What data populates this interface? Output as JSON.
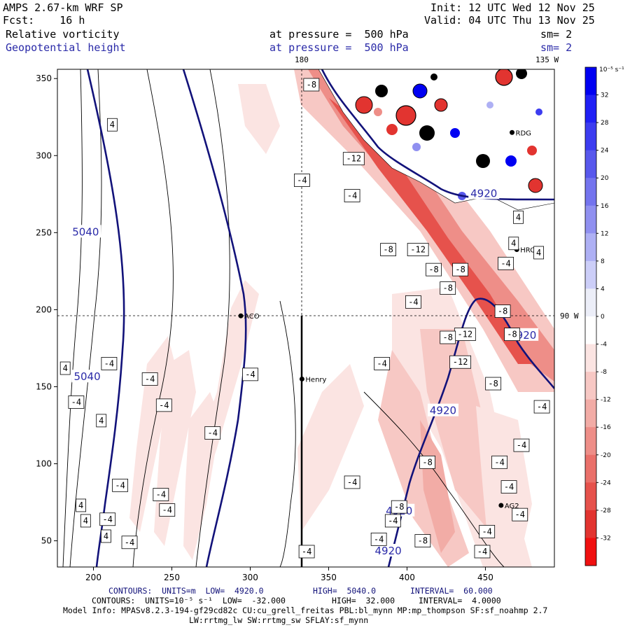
{
  "header": {
    "model": "AMPS 2.67-km WRF SP",
    "forecast": "Fcst:    16 h",
    "init": "Init: 12 UTC Wed 12 Nov 25",
    "valid": "Valid: 04 UTC Thu 13 Nov 25",
    "field1_name": "Relative vorticity",
    "field1_level": "at pressure =  500 hPa",
    "field1_smooth": "sm= 2",
    "field2_name": "Geopotential height",
    "field2_level": "at pressure =  500 hPa",
    "field2_smooth": "sm= 2",
    "top_lon_label": "180",
    "top_right_lon_label": "135 W",
    "right_lon_label": "90 W"
  },
  "map": {
    "x_ticks": [
      "200",
      "250",
      "300",
      "350",
      "400",
      "450"
    ],
    "x_tick_values": [
      200,
      250,
      300,
      350,
      400,
      450
    ],
    "y_ticks": [
      "350",
      "300",
      "250",
      "200",
      "150",
      "100",
      "50"
    ],
    "y_tick_values": [
      350,
      300,
      250,
      200,
      150,
      100,
      50
    ],
    "x_range": [
      177,
      494
    ],
    "y_range": [
      33,
      356
    ],
    "stations": [
      {
        "name": "RDG",
        "x": 467,
        "y": 315
      },
      {
        "name": "HRC",
        "x": 470,
        "y": 239
      },
      {
        "name": "ACO",
        "x": 294,
        "y": 196
      },
      {
        "name": "Henry",
        "x": 333,
        "y": 155
      },
      {
        "name": "AG2",
        "x": 460,
        "y": 73
      }
    ],
    "height_labels": [
      {
        "text": "5040",
        "x": 195,
        "y": 250
      },
      {
        "text": "5040",
        "x": 196,
        "y": 156
      },
      {
        "text": "4920",
        "x": 449,
        "y": 275
      },
      {
        "text": "4920",
        "x": 474,
        "y": 183
      },
      {
        "text": "4920",
        "x": 423,
        "y": 134
      },
      {
        "text": "4920",
        "x": 395,
        "y": 69
      },
      {
        "text": "4920",
        "x": 388,
        "y": 43
      }
    ],
    "vort_labels": [
      {
        "text": "-8",
        "x": 339,
        "y": 346
      },
      {
        "text": "-12",
        "x": 366,
        "y": 298
      },
      {
        "text": "-4",
        "x": 333,
        "y": 284
      },
      {
        "text": "-4",
        "x": 365,
        "y": 274
      },
      {
        "text": "-8",
        "x": 388,
        "y": 239
      },
      {
        "text": "-12",
        "x": 407,
        "y": 239
      },
      {
        "text": "-8",
        "x": 417,
        "y": 226
      },
      {
        "text": "-8",
        "x": 434,
        "y": 226
      },
      {
        "text": "-8",
        "x": 426,
        "y": 214
      },
      {
        "text": "-4",
        "x": 404,
        "y": 205
      },
      {
        "text": "-8",
        "x": 461,
        "y": 199
      },
      {
        "text": "-12",
        "x": 437,
        "y": 184
      },
      {
        "text": "-8",
        "x": 467,
        "y": 184
      },
      {
        "text": "-8",
        "x": 426,
        "y": 182
      },
      {
        "text": "-12",
        "x": 434,
        "y": 166
      },
      {
        "text": "-8",
        "x": 455,
        "y": 152
      },
      {
        "text": "-4",
        "x": 384,
        "y": 165
      },
      {
        "text": "-4",
        "x": 300,
        "y": 158
      },
      {
        "text": "-4",
        "x": 236,
        "y": 155
      },
      {
        "text": "-4",
        "x": 245,
        "y": 138
      },
      {
        "text": "-4",
        "x": 210,
        "y": 165
      },
      {
        "text": "-4",
        "x": 189,
        "y": 140
      },
      {
        "text": "-4",
        "x": 276,
        "y": 120
      },
      {
        "text": "-4",
        "x": 217,
        "y": 86
      },
      {
        "text": "-4",
        "x": 243,
        "y": 80
      },
      {
        "text": "-4",
        "x": 247,
        "y": 70
      },
      {
        "text": "-4",
        "x": 209,
        "y": 64
      },
      {
        "text": "-4",
        "x": 223,
        "y": 49
      },
      {
        "text": "-4",
        "x": 336,
        "y": 43
      },
      {
        "text": "-4",
        "x": 365,
        "y": 88
      },
      {
        "text": "-8",
        "x": 413,
        "y": 101
      },
      {
        "text": "-8",
        "x": 395,
        "y": 72
      },
      {
        "text": "-4",
        "x": 391,
        "y": 63
      },
      {
        "text": "-8",
        "x": 410,
        "y": 50
      },
      {
        "text": "-4",
        "x": 382,
        "y": 51
      },
      {
        "text": "-4",
        "x": 459,
        "y": 101
      },
      {
        "text": "-4",
        "x": 465,
        "y": 85
      },
      {
        "text": "-4",
        "x": 472,
        "y": 67
      },
      {
        "text": "-4",
        "x": 451,
        "y": 56
      },
      {
        "text": "-4",
        "x": 448,
        "y": 43
      },
      {
        "text": "-4",
        "x": 473,
        "y": 112
      },
      {
        "text": "-4",
        "x": 486,
        "y": 137
      },
      {
        "text": "-4",
        "x": 463,
        "y": 230
      },
      {
        "text": "4",
        "x": 212,
        "y": 320
      },
      {
        "text": "4",
        "x": 182,
        "y": 162
      },
      {
        "text": "4",
        "x": 205,
        "y": 128
      },
      {
        "text": "4",
        "x": 192,
        "y": 73
      },
      {
        "text": "4",
        "x": 195,
        "y": 63
      },
      {
        "text": "4",
        "x": 208,
        "y": 53
      },
      {
        "text": "4",
        "x": 471,
        "y": 260
      },
      {
        "text": "4",
        "x": 468,
        "y": 243
      },
      {
        "text": "4",
        "x": 484,
        "y": 237
      }
    ]
  },
  "colorbar": {
    "unit_label": "10⁻⁵ s⁻¹",
    "ticks": [
      "32",
      "28",
      "24",
      "20",
      "16",
      "12",
      "8",
      "4",
      "0",
      "-4",
      "-8",
      "-12",
      "-16",
      "-20",
      "-24",
      "-28",
      "-32"
    ],
    "colors": [
      "#0000f2",
      "#2020f5",
      "#3c3cf0",
      "#5858ec",
      "#7474ee",
      "#9090f0",
      "#aeb0f4",
      "#cccef8",
      "#eceef8",
      "#ffffff",
      "#fbe4e2",
      "#f7c8c4",
      "#f2aca6",
      "#ee8e88",
      "#ea706a",
      "#e6524c",
      "#e23430",
      "#f01010"
    ]
  },
  "footer": {
    "line1_a": "CONTOURS:  UNITS=m  LOW=  4920.0",
    "line1_b": "HIGH=  5040.0",
    "line1_c": "INTERVAL=  60.000",
    "line2_a": "CONTOURS:  UNITS=10⁻⁵ s⁻¹  LOW=  -32.000",
    "line2_b": "HIGH=  32.000",
    "line2_c": "INTERVAL=  4.0000",
    "line3": "Model Info: MPASv8.2.3-194-gf29cd82c CU:cu_grell_freitas PBL:bl_mynn MP:mp_thompson SF:sf_noahmp 2.7",
    "line4": "LW:rrtmg_lw SW:rrtmg_sw SFLAY:sf_mynn"
  }
}
